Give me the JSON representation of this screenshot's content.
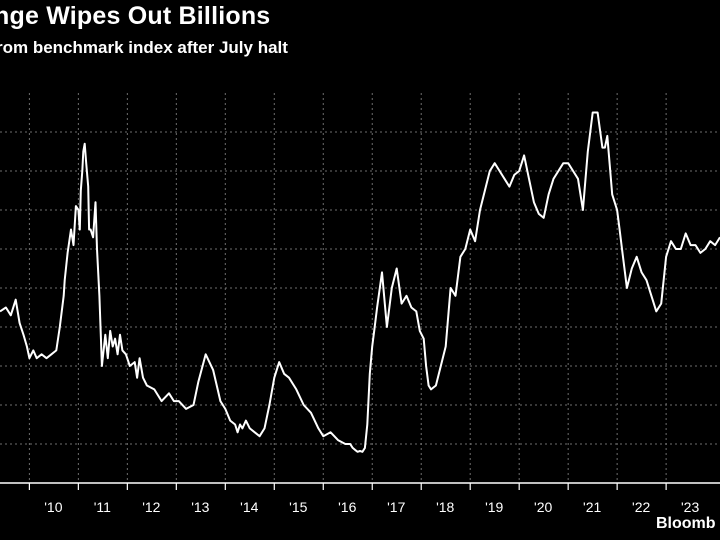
{
  "header": {
    "title": "nge Wipes Out Billions",
    "subtitle": "rom benchmark index after July halt"
  },
  "footer": {
    "source": "Bloomb"
  },
  "colors": {
    "background": "#000000",
    "line": "#ffffff",
    "grid": "#6e6e6e"
  },
  "chart_data": {
    "type": "line",
    "title": "nge Wipes Out Billions",
    "subtitle": "rom benchmark index after July halt",
    "xlabel": "",
    "ylabel": "",
    "grid": true,
    "x_tick_labels": [
      "'10",
      "'11",
      "'12",
      "'13",
      "'14",
      "'15",
      "'16",
      "'17",
      "'18",
      "'19",
      "'20",
      "'21",
      "'22",
      "'23"
    ],
    "x_ticks": [
      2010,
      2011,
      2012,
      2013,
      2014,
      2015,
      2016,
      2017,
      2018,
      2019,
      2020,
      2021,
      2022,
      2023
    ],
    "xlim": [
      2009.4,
      2024.1
    ],
    "ylim": [
      0,
      10
    ],
    "gridlines_y": [
      1,
      2,
      3,
      4,
      5,
      6,
      7,
      8,
      9
    ],
    "series": [
      {
        "name": "",
        "x": [
          2009.4,
          2009.52,
          2009.62,
          2009.72,
          2009.8,
          2009.88,
          2009.95,
          2010.0,
          2010.08,
          2010.15,
          2010.25,
          2010.35,
          2010.45,
          2010.55,
          2010.62,
          2010.7,
          2010.72,
          2010.78,
          2010.85,
          2010.9,
          2010.95,
          2011.0,
          2011.03,
          2011.05,
          2011.08,
          2011.1,
          2011.13,
          2011.16,
          2011.2,
          2011.22,
          2011.25,
          2011.3,
          2011.35,
          2011.38,
          2011.43,
          2011.48,
          2011.55,
          2011.6,
          2011.65,
          2011.7,
          2011.75,
          2011.8,
          2011.85,
          2011.9,
          2011.97,
          2012.05,
          2012.15,
          2012.2,
          2012.25,
          2012.32,
          2012.4,
          2012.55,
          2012.7,
          2012.85,
          2012.95,
          2013.05,
          2013.2,
          2013.35,
          2013.45,
          2013.6,
          2013.75,
          2013.9,
          2014.0,
          2014.1,
          2014.2,
          2014.25,
          2014.3,
          2014.35,
          2014.42,
          2014.5,
          2014.6,
          2014.7,
          2014.8,
          2014.9,
          2015.0,
          2015.1,
          2015.2,
          2015.3,
          2015.45,
          2015.6,
          2015.75,
          2015.9,
          2016.0,
          2016.15,
          2016.3,
          2016.45,
          2016.55,
          2016.6,
          2016.65,
          2016.7,
          2016.75,
          2016.8,
          2016.85,
          2016.9,
          2016.95,
          2017.0,
          2017.05,
          2017.1,
          2017.2,
          2017.3,
          2017.4,
          2017.5,
          2017.6,
          2017.7,
          2017.8,
          2017.9,
          2017.97,
          2018.05,
          2018.1,
          2018.15,
          2018.2,
          2018.3,
          2018.4,
          2018.5,
          2018.6,
          2018.7,
          2018.8,
          2018.9,
          2019.0,
          2019.1,
          2019.2,
          2019.3,
          2019.4,
          2019.5,
          2019.6,
          2019.7,
          2019.8,
          2019.9,
          2020.0,
          2020.1,
          2020.2,
          2020.3,
          2020.4,
          2020.5,
          2020.6,
          2020.7,
          2020.8,
          2020.9,
          2021.0,
          2021.1,
          2021.2,
          2021.3,
          2021.4,
          2021.5,
          2021.6,
          2021.7,
          2021.75,
          2021.8,
          2021.9,
          2022.0,
          2022.05,
          2022.1,
          2022.2,
          2022.3,
          2022.4,
          2022.5,
          2022.6,
          2022.7,
          2022.8,
          2022.9,
          2023.0,
          2023.1,
          2023.2,
          2023.3,
          2023.4,
          2023.5,
          2023.6,
          2023.7,
          2023.8,
          2023.9,
          2024.0,
          2024.1
        ],
        "values": [
          4.4,
          4.5,
          4.3,
          4.7,
          4.1,
          3.8,
          3.5,
          3.2,
          3.4,
          3.2,
          3.3,
          3.2,
          3.3,
          3.4,
          4.0,
          4.8,
          5.2,
          5.9,
          6.5,
          6.1,
          7.1,
          7.0,
          6.5,
          7.5,
          8.0,
          8.5,
          8.7,
          8.2,
          7.6,
          6.5,
          6.5,
          6.3,
          7.2,
          6.0,
          4.8,
          3.0,
          3.8,
          3.2,
          3.9,
          3.5,
          3.7,
          3.3,
          3.8,
          3.4,
          3.3,
          3.0,
          3.1,
          2.7,
          3.2,
          2.7,
          2.5,
          2.4,
          2.1,
          2.3,
          2.1,
          2.1,
          1.9,
          2.0,
          2.6,
          3.3,
          2.9,
          2.1,
          1.9,
          1.6,
          1.5,
          1.3,
          1.5,
          1.4,
          1.6,
          1.4,
          1.3,
          1.2,
          1.4,
          2.0,
          2.7,
          3.1,
          2.8,
          2.7,
          2.4,
          2.0,
          1.8,
          1.4,
          1.2,
          1.3,
          1.1,
          1.0,
          1.0,
          0.9,
          0.85,
          0.8,
          0.82,
          0.8,
          0.9,
          1.5,
          2.8,
          3.5,
          4.0,
          4.5,
          5.4,
          4.0,
          5.0,
          5.5,
          4.6,
          4.8,
          4.5,
          4.4,
          3.9,
          3.7,
          3.0,
          2.5,
          2.4,
          2.5,
          3.0,
          3.5,
          5.0,
          4.8,
          5.8,
          6.0,
          6.5,
          6.2,
          7.0,
          7.5,
          8.0,
          8.2,
          8.0,
          7.8,
          7.6,
          7.9,
          8.0,
          8.4,
          7.8,
          7.2,
          6.9,
          6.8,
          7.4,
          7.8,
          8.0,
          8.2,
          8.2,
          8.0,
          7.8,
          7.0,
          8.5,
          9.5,
          9.5,
          8.6,
          8.6,
          8.9,
          7.4,
          7.0,
          6.5,
          6.0,
          5.0,
          5.5,
          5.8,
          5.4,
          5.2,
          4.8,
          4.4,
          4.6,
          5.8,
          6.2,
          6.0,
          6.0,
          6.4,
          6.1,
          6.1,
          5.9,
          6.0,
          6.2,
          6.1,
          6.3
        ]
      }
    ]
  }
}
